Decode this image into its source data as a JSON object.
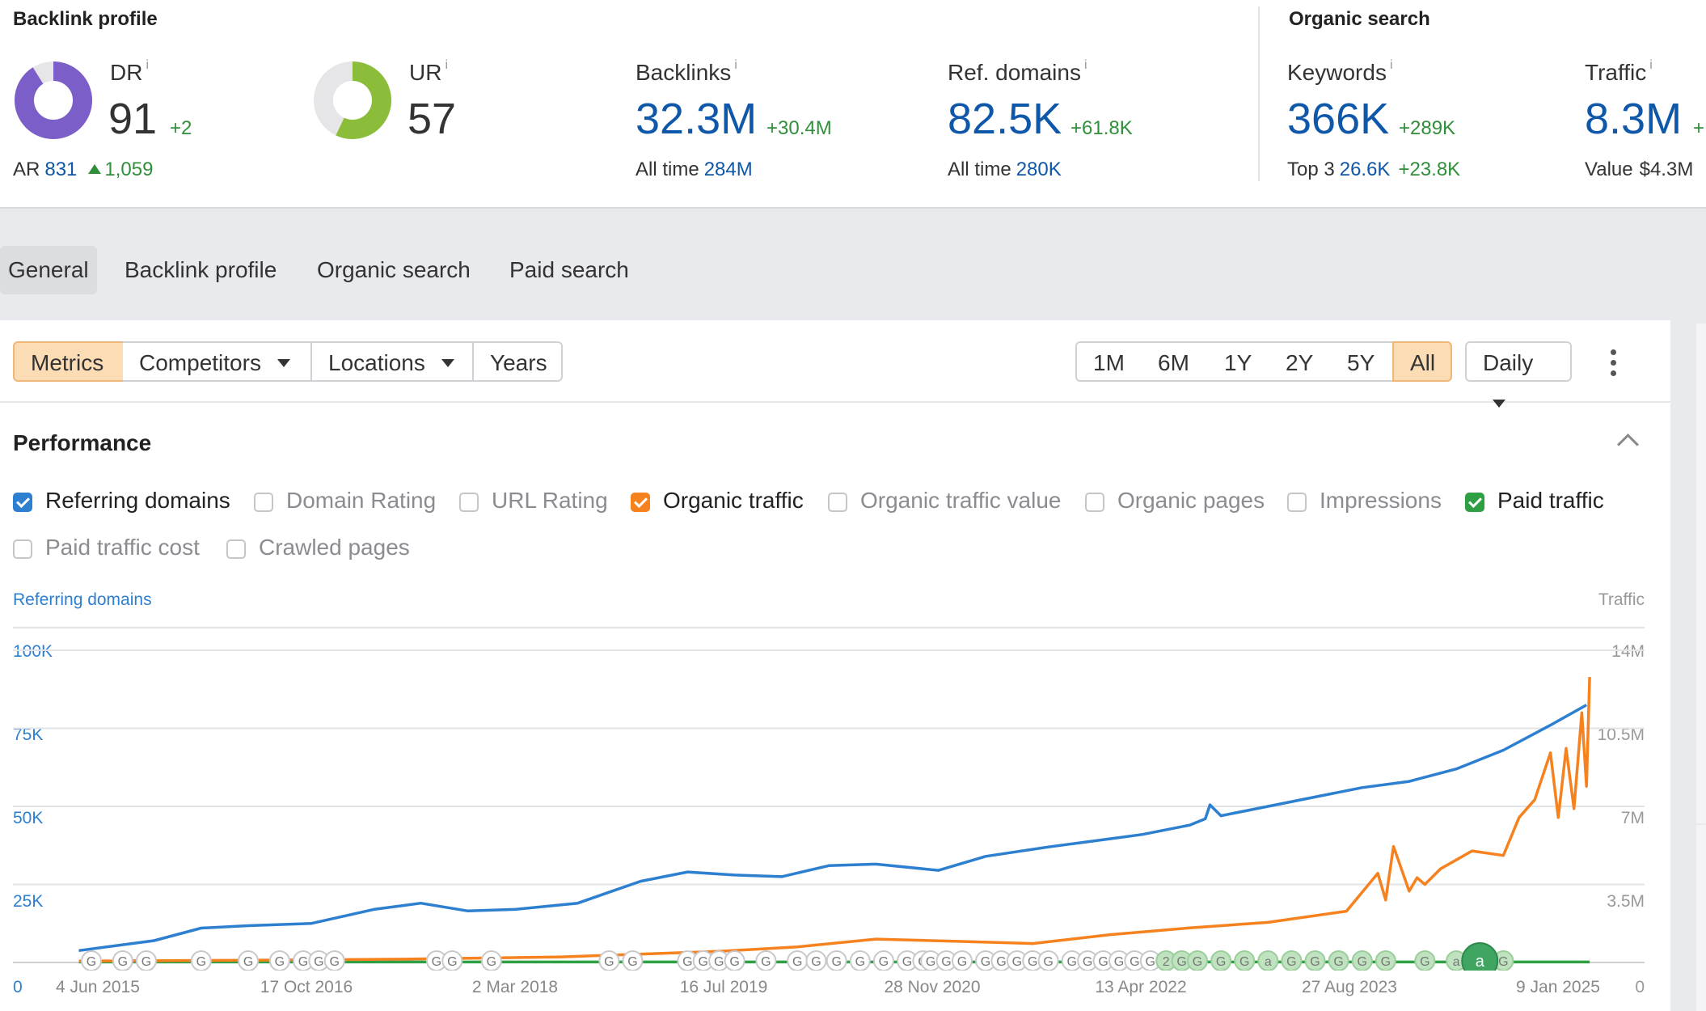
{
  "backlink_profile": {
    "title": "Backlink profile",
    "dr": {
      "label": "DR",
      "info": "i",
      "value": "91",
      "delta": "+2",
      "level": 0.91,
      "color": "#7b5ec8"
    },
    "ar": {
      "label": "AR",
      "value": "831",
      "delta": "1,059"
    },
    "ur": {
      "label": "UR",
      "info": "i",
      "value": "57",
      "level": 0.57,
      "color": "#8bbd3a"
    },
    "backlinks": {
      "label": "Backlinks",
      "info": "i",
      "value": "32.3M",
      "delta": "+30.4M",
      "sub_label": "All time",
      "sub_value": "284M"
    },
    "ref_domains": {
      "label": "Ref. domains",
      "info": "i",
      "value": "82.5K",
      "delta": "+61.8K",
      "sub_label": "All time",
      "sub_value": "280K"
    }
  },
  "organic_search": {
    "title": "Organic search",
    "keywords": {
      "label": "Keywords",
      "info": "i",
      "value": "366K",
      "delta": "+289K",
      "sub_label": "Top 3",
      "sub_value": "26.6K",
      "sub_delta": "+23.8K"
    },
    "traffic": {
      "label": "Traffic",
      "info": "i",
      "value": "8.3M",
      "delta": "+",
      "sub_label": "Value",
      "sub_value": "$4.3M"
    }
  },
  "tabs": [
    "General",
    "Backlink profile",
    "Organic search",
    "Paid search"
  ],
  "toolbar": {
    "metrics": "Metrics",
    "competitors": "Competitors",
    "locations": "Locations",
    "years": "Years",
    "ranges": [
      "1M",
      "6M",
      "1Y",
      "2Y",
      "5Y",
      "All"
    ],
    "active_range": "All",
    "interval": "Daily"
  },
  "performance": {
    "title": "Performance",
    "checkboxes": [
      {
        "label": "Referring domains",
        "checked": true,
        "color": "#2d7fd0"
      },
      {
        "label": "Domain Rating",
        "checked": false
      },
      {
        "label": "URL Rating",
        "checked": false
      },
      {
        "label": "Organic traffic",
        "checked": true,
        "color": "#f5821f"
      },
      {
        "label": "Organic traffic value",
        "checked": false
      },
      {
        "label": "Organic pages",
        "checked": false
      },
      {
        "label": "Impressions",
        "checked": false
      },
      {
        "label": "Paid traffic",
        "checked": true,
        "color": "#2ea043"
      },
      {
        "label": "Paid traffic cost",
        "checked": false
      },
      {
        "label": "Crawled pages",
        "checked": false
      }
    ]
  },
  "chart_data": {
    "type": "line",
    "left_axis_title": "Referring domains",
    "right_axis_title": "Traffic",
    "y_left_ticks": [
      "0",
      "25K",
      "50K",
      "75K",
      "100K"
    ],
    "y_right_ticks": [
      "0",
      "3.5M",
      "7M",
      "10.5M",
      "14M"
    ],
    "ylim_left": [
      0,
      100000
    ],
    "ylim_right": [
      0,
      14000000
    ],
    "x_tick_labels": [
      "4 Jun 2015",
      "17 Oct 2016",
      "2 Mar 2018",
      "16 Jul 2019",
      "28 Nov 2020",
      "13 Apr 2022",
      "27 Aug 2023",
      "9 Jan 2025"
    ],
    "xlim": [
      2015.0,
      2025.4
    ],
    "grid": true,
    "series": [
      {
        "name": "Referring domains",
        "axis": "left",
        "color": "#2d7fd0",
        "x": [
          2015.42,
          2015.9,
          2016.2,
          2016.5,
          2016.9,
          2017.3,
          2017.6,
          2017.9,
          2018.2,
          2018.6,
          2019.0,
          2019.3,
          2019.6,
          2019.9,
          2020.2,
          2020.5,
          2020.9,
          2021.2,
          2021.6,
          2021.9,
          2022.2,
          2022.5,
          2022.6,
          2022.63,
          2022.7,
          2023.0,
          2023.3,
          2023.6,
          2023.9,
          2024.2,
          2024.5,
          2024.8,
          2025.03
        ],
        "y": [
          3800,
          7000,
          11000,
          11800,
          12500,
          17000,
          19000,
          16500,
          17000,
          19000,
          26000,
          29000,
          28000,
          27500,
          31000,
          31500,
          29500,
          34000,
          37000,
          39000,
          41000,
          44000,
          46000,
          50500,
          47000,
          50000,
          53000,
          56000,
          58000,
          62000,
          68000,
          76000,
          82500
        ]
      },
      {
        "name": "Organic traffic",
        "axis": "right",
        "color": "#f5821f",
        "x": [
          2015.42,
          2016.5,
          2017.5,
          2018.5,
          2019.5,
          2020.0,
          2020.5,
          2021.0,
          2021.5,
          2022.0,
          2022.5,
          2023.0,
          2023.5,
          2023.7,
          2023.75,
          2023.8,
          2023.9,
          2023.95,
          2024.0,
          2024.1,
          2024.3,
          2024.5,
          2024.6,
          2024.7,
          2024.8,
          2024.85,
          2024.9,
          2024.95,
          2025.0,
          2025.03,
          2025.05
        ],
        "y": [
          60000,
          100000,
          150000,
          250000,
          500000,
          700000,
          1050000,
          950000,
          850000,
          1250000,
          1550000,
          1800000,
          2300000,
          4000000,
          2800000,
          5200000,
          3200000,
          3800000,
          3500000,
          4200000,
          5000000,
          4800000,
          6500000,
          7300000,
          9400000,
          6500000,
          9600000,
          6900000,
          11200000,
          7900000,
          12800000
        ]
      },
      {
        "name": "Paid traffic",
        "axis": "right",
        "color": "#2ea043",
        "x": [
          2015.42,
          2025.05
        ],
        "y": [
          20000,
          20000
        ]
      }
    ],
    "annotations": {
      "marker_letter": "G",
      "alt_letters": [
        "a",
        "2"
      ],
      "x": [
        2015.5,
        2015.7,
        2015.85,
        2016.2,
        2016.5,
        2016.7,
        2016.85,
        2016.95,
        2017.05,
        2017.7,
        2017.8,
        2018.05,
        2018.8,
        2018.95,
        2019.3,
        2019.4,
        2019.5,
        2019.6,
        2019.8,
        2020.0,
        2020.12,
        2020.25,
        2020.4,
        2020.55,
        2020.7,
        2020.8,
        2020.85,
        2020.95,
        2021.05,
        2021.2,
        2021.3,
        2021.4,
        2021.5,
        2021.6,
        2021.75,
        2021.85,
        2021.95,
        2022.05,
        2022.15,
        2022.25,
        2022.35,
        2022.45,
        2022.55,
        2022.7,
        2022.85,
        2023.0,
        2023.15,
        2023.3,
        2023.45,
        2023.6,
        2023.75,
        2024.0,
        2024.2,
        2024.3,
        2024.4,
        2024.5
      ]
    }
  }
}
